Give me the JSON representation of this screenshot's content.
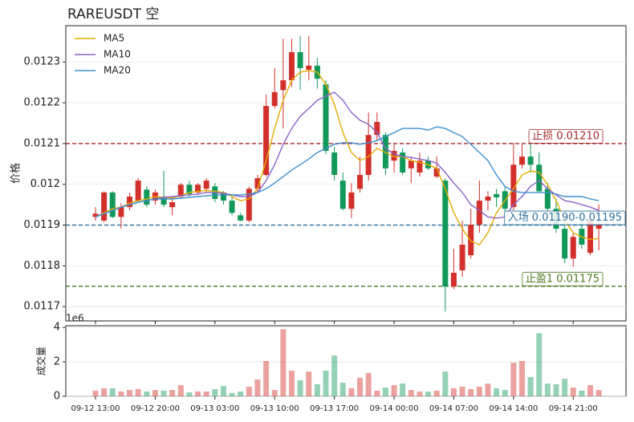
{
  "chart_data": {
    "type": "candlestick",
    "title": "RAREUSDT  空",
    "ylabel": "价格",
    "categories": [
      "09-12 13:00",
      null,
      null,
      null,
      null,
      null,
      null,
      "09-12 20:00",
      null,
      null,
      null,
      null,
      null,
      null,
      "09-13 03:00",
      null,
      null,
      null,
      null,
      null,
      null,
      "09-13 10:00",
      null,
      null,
      null,
      null,
      null,
      null,
      "09-13 17:00",
      null,
      null,
      null,
      null,
      null,
      null,
      "09-14 00:00",
      null,
      null,
      null,
      null,
      null,
      null,
      "09-14 07:00",
      null,
      null,
      null,
      null,
      null,
      null,
      "09-14 14:00",
      null,
      null,
      null,
      null,
      null,
      null,
      "09-14 21:00",
      null,
      null,
      null
    ],
    "open": [
      0.01192,
      0.011911,
      0.01198,
      0.01192,
      0.011944,
      0.01196,
      0.011987,
      0.01196,
      0.01197,
      0.011944,
      0.01197,
      0.011999,
      0.01198,
      0.011989,
      0.011995,
      0.01198,
      0.01196,
      0.011924,
      0.011911,
      0.011989,
      0.012023,
      0.012192,
      0.012231,
      0.012255,
      0.012324,
      0.012281,
      0.012291,
      0.012245,
      0.012078,
      0.012009,
      0.01194,
      0.011989,
      0.012023,
      0.012121,
      0.012121,
      0.012058,
      0.012078,
      0.012039,
      0.012029,
      0.012058,
      0.012019,
      0.012009,
      0.011749,
      0.011789,
      0.011826,
      0.011901,
      0.01196,
      0.011976,
      0.011983,
      0.011944,
      0.012048,
      0.012068,
      0.012048,
      0.011989,
      0.01194,
      0.011891,
      0.011818,
      0.011891,
      0.011832,
      0.011891
    ],
    "high": [
      0.011944,
      0.011983,
      0.011983,
      0.011954,
      0.01198,
      0.012015,
      0.011995,
      0.011987,
      0.012033,
      0.01197,
      0.012003,
      0.012009,
      0.012003,
      0.012015,
      0.012003,
      0.011983,
      0.01197,
      0.01193,
      0.011995,
      0.012023,
      0.01222,
      0.012285,
      0.012357,
      0.012357,
      0.012363,
      0.012363,
      0.01231,
      0.012255,
      0.012092,
      0.012029,
      0.012003,
      0.012068,
      0.012176,
      0.012176,
      0.012127,
      0.012098,
      0.012088,
      0.012068,
      0.012078,
      0.012068,
      0.012068,
      0.012015,
      0.011842,
      0.011911,
      0.01194,
      0.012009,
      0.011983,
      0.011989,
      0.011995,
      0.012102,
      0.012098,
      0.012098,
      0.012078,
      0.012003,
      0.011964,
      0.011911,
      0.011881,
      0.01193,
      0.011936,
      0.01195
    ],
    "low": [
      0.011911,
      0.011907,
      0.011917,
      0.011891,
      0.011936,
      0.011956,
      0.011944,
      0.01195,
      0.011944,
      0.011924,
      0.011964,
      0.01197,
      0.011974,
      0.01198,
      0.011956,
      0.01195,
      0.011924,
      0.011909,
      0.011907,
      0.01198,
      0.012019,
      0.012186,
      0.012137,
      0.012239,
      0.012231,
      0.012255,
      0.012235,
      0.012074,
      0.012009,
      0.011936,
      0.011917,
      0.01198,
      0.012009,
      0.012107,
      0.012023,
      0.012029,
      0.012023,
      0.012003,
      0.012019,
      0.012035,
      0.012015,
      0.011688,
      0.011743,
      0.011773,
      0.011818,
      0.011881,
      0.011936,
      0.011944,
      0.01193,
      0.011936,
      0.012039,
      0.012029,
      0.01198,
      0.01193,
      0.011881,
      0.011806,
      0.011798,
      0.011842,
      0.011826,
      0.011838
    ],
    "close": [
      0.011928,
      0.01198,
      0.01192,
      0.011944,
      0.01197,
      0.012009,
      0.01195,
      0.01198,
      0.01195,
      0.011956,
      0.011999,
      0.011976,
      0.011999,
      0.012009,
      0.011964,
      0.01196,
      0.01193,
      0.011911,
      0.011989,
      0.012015,
      0.012192,
      0.012226,
      0.012255,
      0.012324,
      0.012285,
      0.012291,
      0.012259,
      0.012082,
      0.012023,
      0.01194,
      0.01198,
      0.012023,
      0.012121,
      0.012153,
      0.012039,
      0.012082,
      0.012029,
      0.012058,
      0.012058,
      0.012039,
      0.012039,
      0.011749,
      0.011783,
      0.011852,
      0.011901,
      0.01196,
      0.01197,
      0.011968,
      0.01194,
      0.012048,
      0.012068,
      0.012048,
      0.011983,
      0.01194,
      0.011891,
      0.011818,
      0.011871,
      0.011852,
      0.011911,
      0.011901
    ],
    "up_color": "#d3302b",
    "down_color": "#12995a",
    "series": [
      {
        "name": "MA5",
        "color": "#e6ac00",
        "values": [
          0.01192,
          0.01193,
          0.01194,
          0.011944,
          0.011954,
          0.01196,
          0.011964,
          0.01197,
          0.011968,
          0.011966,
          0.011972,
          0.01198,
          0.011983,
          0.011985,
          0.011983,
          0.01198,
          0.01197,
          0.01196,
          0.011964,
          0.011989,
          0.012058,
          0.012137,
          0.012206,
          0.012255,
          0.012275,
          0.012279,
          0.012275,
          0.012245,
          0.012196,
          0.012127,
          0.012078,
          0.012058,
          0.012068,
          0.012088,
          0.012078,
          0.012068,
          0.012068,
          0.012058,
          0.012054,
          0.012048,
          0.012039,
          0.011989,
          0.01193,
          0.011891,
          0.011861,
          0.011852,
          0.011881,
          0.01193,
          0.01196,
          0.011989,
          0.012023,
          0.012033,
          0.012029,
          0.011999,
          0.01196,
          0.011911,
          0.011881,
          0.011871,
          0.011865,
          0.011867
        ]
      },
      {
        "name": "MA10",
        "color": "#8a63c8",
        "values": [
          0.01192,
          0.011928,
          0.011936,
          0.011944,
          0.01195,
          0.011956,
          0.01196,
          0.011964,
          0.011968,
          0.01197,
          0.011972,
          0.011974,
          0.011976,
          0.01198,
          0.01198,
          0.011978,
          0.011974,
          0.01197,
          0.01197,
          0.01198,
          0.012009,
          0.012048,
          0.012098,
          0.012137,
          0.012167,
          0.012186,
          0.012206,
          0.012216,
          0.012226,
          0.012206,
          0.012176,
          0.012157,
          0.012147,
          0.012127,
          0.012088,
          0.012074,
          0.012068,
          0.012066,
          0.012062,
          0.012058,
          0.012052,
          0.012029,
          0.012003,
          0.01198,
          0.01195,
          0.011936,
          0.01192,
          0.011917,
          0.01192,
          0.01195,
          0.01197,
          0.011995,
          0.012009,
          0.011989,
          0.011974,
          0.01196,
          0.011956,
          0.01195,
          0.011944,
          0.011936
        ]
      },
      {
        "name": "MA20",
        "color": "#3d8fd1",
        "values": [
          0.01192,
          0.011928,
          0.011936,
          0.011944,
          0.01195,
          0.011956,
          0.01196,
          0.011964,
          0.011964,
          0.011964,
          0.011966,
          0.011968,
          0.01197,
          0.011972,
          0.011974,
          0.011974,
          0.011974,
          0.011974,
          0.011976,
          0.01198,
          0.011989,
          0.012003,
          0.012019,
          0.012035,
          0.012048,
          0.012062,
          0.012078,
          0.012088,
          0.012098,
          0.012102,
          0.012102,
          0.012098,
          0.012102,
          0.012107,
          0.012117,
          0.012127,
          0.012137,
          0.012137,
          0.012137,
          0.012133,
          0.012141,
          0.012137,
          0.012127,
          0.012117,
          0.012098,
          0.012078,
          0.012058,
          0.012023,
          0.011995,
          0.011983,
          0.01198,
          0.01198,
          0.01198,
          0.01198,
          0.011976,
          0.01197,
          0.01197,
          0.01197,
          0.011964,
          0.01196
        ]
      }
    ],
    "ylim": [
      0.011665,
      0.012389
    ],
    "yticks": [
      0.0117,
      0.0118,
      0.0119,
      0.012,
      0.0121,
      0.0122,
      0.0123
    ],
    "grid": true,
    "legend": "upper left",
    "hlines": [
      {
        "value": 0.0121,
        "label": "止损 0.01210",
        "color": "#a3282b"
      },
      {
        "value": 0.0119,
        "label": "入场 0.01190-0.01195",
        "color": "#2a6f9e"
      },
      {
        "value": 0.01175,
        "label": "止盈1 0.01175",
        "color": "#4a7a22"
      }
    ],
    "volume": {
      "ylabel": "成交量",
      "offset_label": "1e6",
      "ylim": [
        0,
        4.1
      ],
      "yticks": [
        0,
        2,
        4
      ],
      "values": [
        0.33,
        0.47,
        0.47,
        0.28,
        0.37,
        0.42,
        0.28,
        0.37,
        0.33,
        0.37,
        0.65,
        0.23,
        0.28,
        0.28,
        0.42,
        0.6,
        0.19,
        0.28,
        0.56,
        0.98,
        2.05,
        0.37,
        3.9,
        1.49,
        0.93,
        1.44,
        0.7,
        1.49,
        2.37,
        0.79,
        0.47,
        1.07,
        1.35,
        0.33,
        0.51,
        0.65,
        0.74,
        0.37,
        0.28,
        0.28,
        0.33,
        1.44,
        0.47,
        0.56,
        0.42,
        0.56,
        0.74,
        0.47,
        0.37,
        1.95,
        2.05,
        1.12,
        3.67,
        0.74,
        0.7,
        1.02,
        0.51,
        0.33,
        0.65,
        0.37
      ]
    }
  }
}
